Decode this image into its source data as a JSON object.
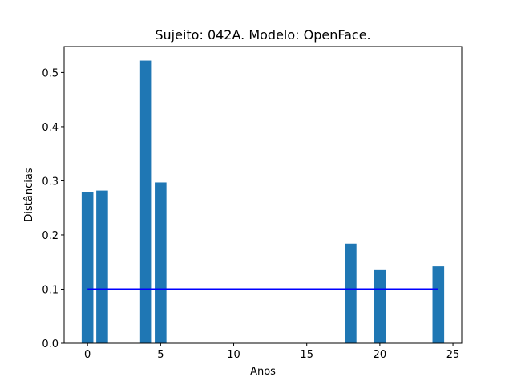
{
  "chart_data": {
    "type": "bar",
    "title": "Sujeito: 042A. Modelo: OpenFace.",
    "xlabel": "Anos",
    "ylabel": "Distâncias",
    "x": [
      0,
      1,
      4,
      5,
      18,
      20,
      24
    ],
    "values": [
      0.279,
      0.282,
      0.522,
      0.297,
      0.184,
      0.135,
      0.142
    ],
    "bar_width": 0.8,
    "bar_color": "#1f77b4",
    "xlim": [
      -1.6,
      25.6
    ],
    "ylim": [
      0,
      0.548
    ],
    "xticks": [
      0,
      5,
      10,
      15,
      20,
      25
    ],
    "yticks": [
      0.0,
      0.1,
      0.2,
      0.3,
      0.4,
      0.5
    ],
    "xtick_labels": [
      "0",
      "5",
      "10",
      "15",
      "20",
      "25"
    ],
    "ytick_labels": [
      "0.0",
      "0.1",
      "0.2",
      "0.3",
      "0.4",
      "0.5"
    ],
    "reference_line": {
      "y": 0.1,
      "x_start": 0,
      "x_end": 24,
      "color": "#0000ff"
    },
    "grid": false
  }
}
